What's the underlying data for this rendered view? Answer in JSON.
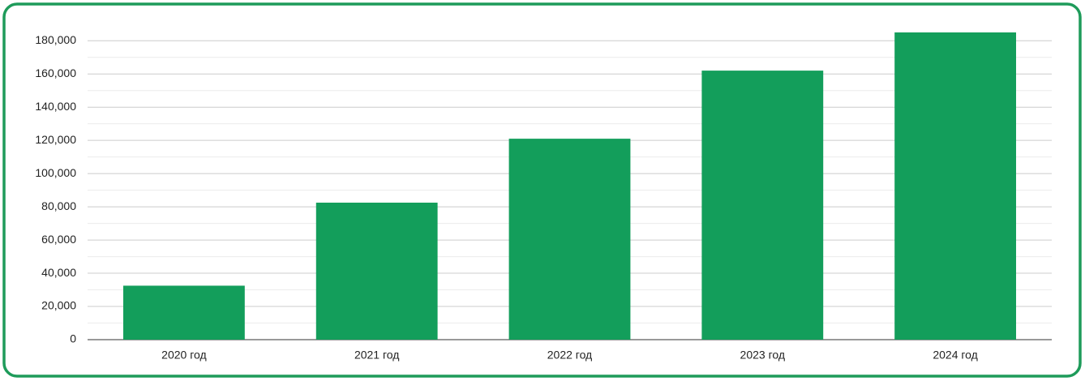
{
  "chart_data": {
    "type": "bar",
    "categories": [
      "2020 год",
      "2021 год",
      "2022 год",
      "2023 год",
      "2024 год"
    ],
    "values": [
      32500,
      82500,
      121000,
      162000,
      185000
    ],
    "color": "#139e5b",
    "ylim": [
      0,
      185000
    ],
    "yticks": [
      0,
      {
        "value": 20000,
        "label": "20,000"
      },
      {
        "value": 40000,
        "label": "40,000"
      },
      {
        "value": 60000,
        "label": "60,000"
      },
      {
        "value": 80000,
        "label": "80,000"
      },
      {
        "value": 100000,
        "label": "100,000"
      },
      {
        "value": 120000,
        "label": "120,000"
      },
      {
        "value": 140000,
        "label": "140,000"
      },
      {
        "value": 160000,
        "label": "160,000"
      },
      {
        "value": 180000,
        "label": "180,000"
      }
    ],
    "minor_yticks": [
      10000,
      30000,
      50000,
      70000,
      90000,
      110000,
      130000,
      150000,
      170000
    ],
    "grid": true
  }
}
